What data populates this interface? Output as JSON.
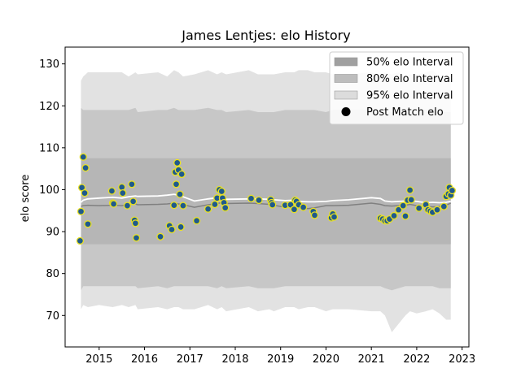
{
  "chart_data": {
    "type": "line",
    "title": "James Lentjes: elo History",
    "xlabel": "",
    "ylabel": "elo score",
    "xlim": [
      2014.25,
      2023.15
    ],
    "ylim": [
      62.5,
      134
    ],
    "xticks": [
      2015,
      2016,
      2017,
      2018,
      2019,
      2020,
      2021,
      2022,
      2023
    ],
    "yticks": [
      70,
      80,
      90,
      100,
      110,
      120,
      130
    ],
    "grid": false,
    "legend_position": "top-right",
    "legend": [
      {
        "label": "50% elo Interval",
        "kind": "band",
        "color": "#a0a0a0"
      },
      {
        "label": "80% elo Interval",
        "kind": "band",
        "color": "#bdbdbd"
      },
      {
        "label": "95% elo Interval",
        "kind": "band",
        "color": "#dcdcdc"
      },
      {
        "label": "Post Match elo",
        "kind": "marker",
        "color": "#000000"
      }
    ],
    "colors": {
      "band95": "#e2e2e2",
      "band80": "#c7c7c7",
      "band50": "#b6b6b6",
      "mean_line": "#808080",
      "white_line": "#ffffff",
      "marker_fill": "#1f5a8c",
      "marker_edge": "#e8e023"
    },
    "x": [
      2014.6,
      2014.65,
      2014.75,
      2015.0,
      2015.3,
      2015.5,
      2015.65,
      2015.8,
      2015.85,
      2016.3,
      2016.5,
      2016.65,
      2016.75,
      2016.85,
      2017.1,
      2017.4,
      2017.6,
      2017.7,
      2017.8,
      2018.3,
      2018.5,
      2018.75,
      2018.85,
      2019.1,
      2019.3,
      2019.4,
      2019.6,
      2019.75,
      2020.0,
      2020.15,
      2020.5,
      2021.0,
      2021.2,
      2021.3,
      2021.45,
      2021.6,
      2021.75,
      2021.85,
      2022.0,
      2022.2,
      2022.35,
      2022.5,
      2022.65,
      2022.75
    ],
    "series": [
      {
        "name": "95% elo Interval upper",
        "values": [
          126,
          127,
          128,
          128,
          128,
          128,
          127,
          128,
          127.5,
          128,
          127,
          128.5,
          128,
          127,
          127.5,
          128.5,
          127.5,
          128,
          127.5,
          128.5,
          127.5,
          127.5,
          127.5,
          128,
          128,
          128.5,
          128.5,
          128,
          128,
          127.5,
          127.5,
          128,
          127,
          128,
          127.5,
          128,
          127,
          127.5,
          127.5,
          128,
          128.5,
          127,
          127,
          127
        ]
      },
      {
        "name": "80% elo Interval upper",
        "values": [
          119.5,
          119,
          119,
          119,
          119,
          119,
          119,
          119.5,
          118.5,
          119,
          119,
          119.5,
          119,
          119,
          119,
          119.5,
          119,
          119,
          118.5,
          119,
          118.5,
          118.5,
          118.5,
          119,
          119,
          119,
          119,
          119,
          118.5,
          119,
          119,
          119,
          118.5,
          119,
          118.5,
          119,
          118.5,
          118.5,
          119,
          119,
          119,
          118.5,
          118.5,
          118.5
        ]
      },
      {
        "name": "50% elo Interval upper",
        "values": [
          107.5,
          107.5,
          107.5,
          107.5,
          107.5,
          107.5,
          107.5,
          107.5,
          107.5,
          107.5,
          107.5,
          107.5,
          107.5,
          107.5,
          107.5,
          107.5,
          107.5,
          107.5,
          107.5,
          107.5,
          107.5,
          107.5,
          107.5,
          107.5,
          107.5,
          107.5,
          107.5,
          107.5,
          107.5,
          107.5,
          107.5,
          107.5,
          107.5,
          107.5,
          107.5,
          107.5,
          107.5,
          107.5,
          107.5,
          107.5,
          107.5,
          107.5,
          107.5,
          107.5
        ]
      },
      {
        "name": "White line",
        "values": [
          97,
          97.5,
          97.8,
          98,
          98.2,
          98,
          98.3,
          98.5,
          98.4,
          98.5,
          98.7,
          98.9,
          98.7,
          98.3,
          97.3,
          97.8,
          98.1,
          98,
          97.7,
          97.8,
          97.8,
          97.7,
          97.6,
          97.4,
          97.5,
          97.2,
          97.1,
          97.1,
          97.2,
          97.4,
          97.6,
          98.1,
          97.9,
          97.3,
          97.1,
          97.2,
          97.3,
          97.4,
          97.2,
          96.9,
          97,
          96.9,
          97,
          97.2
        ]
      },
      {
        "name": "Mean line",
        "values": [
          96,
          96.2,
          96.3,
          96.2,
          96.3,
          96.2,
          96.5,
          96.6,
          96.4,
          96.5,
          96.6,
          96.8,
          96.6,
          96.4,
          95.8,
          96.4,
          96.7,
          96.9,
          96.7,
          96.8,
          96.7,
          96.5,
          96.3,
          95.8,
          95.9,
          95.7,
          95.5,
          95.7,
          96.2,
          96.2,
          96.3,
          96.8,
          96.5,
          96.2,
          96.1,
          96.2,
          96.3,
          96.5,
          96.2,
          96.0,
          95.9,
          96.0,
          96.3,
          96.8
        ]
      },
      {
        "name": "50% elo Interval lower",
        "values": [
          87,
          87,
          87,
          87,
          87,
          87,
          87,
          87,
          87,
          87,
          87,
          87,
          87,
          87,
          87,
          87,
          87,
          87,
          87,
          87,
          87,
          87,
          87,
          87,
          87,
          87,
          87,
          87,
          87,
          87,
          87,
          87,
          87,
          87,
          87,
          87,
          87,
          87,
          87,
          87,
          87,
          87,
          87,
          87
        ]
      },
      {
        "name": "80% elo Interval lower",
        "values": [
          76,
          77,
          77,
          77,
          77,
          77,
          77,
          77,
          76.5,
          77,
          76.5,
          77,
          77,
          77,
          77,
          77,
          76.5,
          77,
          76.5,
          77,
          76.5,
          76.5,
          76.5,
          77,
          77,
          77,
          77,
          77,
          77,
          77,
          77,
          77,
          77,
          76.5,
          76,
          76.5,
          77,
          77,
          77,
          77,
          77,
          76.5,
          76.5,
          76.5
        ]
      },
      {
        "name": "95% elo Interval lower",
        "values": [
          71.5,
          72.5,
          72,
          72.5,
          72,
          72.5,
          72,
          72.5,
          71.5,
          72,
          71.5,
          72,
          72,
          71.5,
          71.5,
          72.5,
          71.5,
          72,
          71,
          72,
          71,
          71.5,
          71,
          72,
          72,
          71.5,
          72,
          72,
          71,
          71.5,
          71.5,
          71,
          71,
          70,
          66,
          68,
          70,
          71,
          70.5,
          71,
          71.5,
          70.5,
          69,
          69
        ]
      }
    ],
    "points": {
      "x": [
        2014.58,
        2014.6,
        2014.62,
        2014.65,
        2014.68,
        2014.7,
        2014.75,
        2015.28,
        2015.3,
        2015.32,
        2015.5,
        2015.52,
        2015.62,
        2015.72,
        2015.75,
        2015.78,
        2015.8,
        2015.82,
        2016.35,
        2016.55,
        2016.6,
        2016.65,
        2016.68,
        2016.7,
        2016.72,
        2016.75,
        2016.78,
        2016.8,
        2016.82,
        2016.85,
        2017.15,
        2017.4,
        2017.55,
        2017.6,
        2017.65,
        2017.7,
        2017.72,
        2017.75,
        2017.78,
        2018.35,
        2018.52,
        2018.78,
        2018.8,
        2018.82,
        2019.1,
        2019.22,
        2019.3,
        2019.32,
        2019.35,
        2019.4,
        2019.5,
        2019.72,
        2019.75,
        2020.12,
        2020.15,
        2020.18,
        2021.2,
        2021.25,
        2021.3,
        2021.35,
        2021.4,
        2021.5,
        2021.6,
        2021.7,
        2021.75,
        2021.8,
        2021.85,
        2021.88,
        2022.05,
        2022.2,
        2022.25,
        2022.3,
        2022.35,
        2022.45,
        2022.6,
        2022.65,
        2022.7,
        2022.72,
        2022.75,
        2022.78
      ],
      "y": [
        87.8,
        94.8,
        100.5,
        107.8,
        99.2,
        105.2,
        91.8,
        99.7,
        96.8,
        96.6,
        100.6,
        99.2,
        96.2,
        101.3,
        97.2,
        92.7,
        92,
        88.5,
        88.8,
        91.4,
        90.5,
        96.3,
        104.2,
        101.3,
        106.4,
        104.7,
        98.9,
        91.1,
        103.7,
        96.2,
        92.6,
        95.4,
        96.5,
        98,
        100,
        99.6,
        98,
        96.9,
        95.7,
        97.9,
        97.5,
        97.6,
        96.9,
        96.4,
        96.3,
        96.4,
        95.3,
        97.5,
        97.2,
        96.4,
        95.8,
        94.8,
        93.9,
        93.3,
        94.2,
        93.5,
        93.2,
        93,
        92.6,
        92.6,
        93,
        93.8,
        95.2,
        96.2,
        93.7,
        97.5,
        99.9,
        97.6,
        95.6,
        96.4,
        95.2,
        94.9,
        94.6,
        95.2,
        96,
        98.4,
        99,
        100.5,
        98.7,
        99.8
      ]
    }
  }
}
